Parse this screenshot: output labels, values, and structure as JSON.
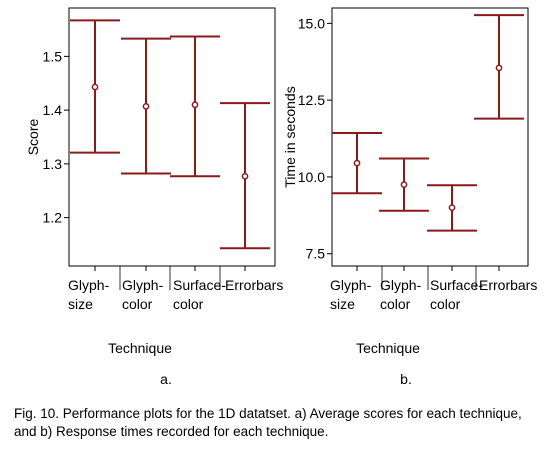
{
  "chart_data": [
    {
      "type": "errorbar",
      "panel_label": "a.",
      "xlabel": "Technique",
      "ylabel": "Score",
      "categories": [
        "Glyph-\nsize",
        "Glyph-\ncolor",
        "Surface-\ncolor",
        "Errorbars"
      ],
      "ylim": [
        1.11,
        1.59
      ],
      "yticks": [
        "1.2",
        "1.3",
        "1.4",
        "1.5"
      ],
      "mean": [
        1.443,
        1.407,
        1.41,
        1.277
      ],
      "lower": [
        1.321,
        1.282,
        1.277,
        1.143
      ],
      "upper": [
        1.567,
        1.533,
        1.537,
        1.413
      ],
      "color": "#8b1a1a"
    },
    {
      "type": "errorbar",
      "panel_label": "b.",
      "xlabel": "Technique",
      "ylabel": "Time in seconds",
      "categories": [
        "Glyph-\nsize",
        "Glyph-\ncolor",
        "Surface-\ncolor",
        "Errorbars"
      ],
      "ylim": [
        7.1,
        15.5
      ],
      "yticks": [
        "7.5",
        "10.0",
        "12.5",
        "15.0"
      ],
      "mean": [
        10.45,
        9.75,
        9.0,
        13.55
      ],
      "lower": [
        9.47,
        8.9,
        8.25,
        11.9
      ],
      "upper": [
        11.43,
        10.6,
        9.73,
        15.27
      ],
      "color": "#8b1a1a"
    }
  ],
  "caption": "Fig. 10. Performance plots for the 1D datatset. a) Average scores for each technique, and b) Response times recorded for each technique."
}
